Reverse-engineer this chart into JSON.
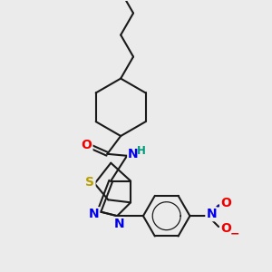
{
  "bg_color": "#ebebeb",
  "bond_color": "#1a1a1a",
  "atom_colors": {
    "S": "#b8a000",
    "N": "#0000ee",
    "O": "#ee0000",
    "C": "#1a1a1a",
    "H": "#009977"
  }
}
